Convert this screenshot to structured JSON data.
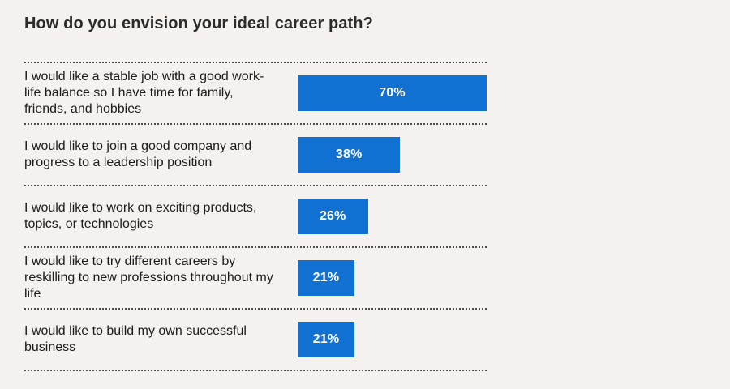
{
  "title": "How do you envision your ideal career path?",
  "colors": {
    "background": "#f4f1ee",
    "bar": "#1171d2",
    "bar_label": "#ffffff",
    "label_text": "#1c1c1c",
    "title_text": "#2b2b2b",
    "separator": "#4a4a4a"
  },
  "chart_data": {
    "type": "bar",
    "orientation": "horizontal",
    "title": "How do you envision your ideal career path?",
    "categories": [
      "I would like a stable job with a good work-life balance so I have time for family, friends, and hobbies",
      "I would like to join a good company and progress to a leadership position",
      "I would like to work on exciting products, topics, or technologies",
      "I would like to try different careers by reskilling to new professions throughout my life",
      "I would like to build my own successful business"
    ],
    "values": [
      70,
      38,
      26,
      21,
      21
    ],
    "value_labels": [
      "70%",
      "38%",
      "26%",
      "21%",
      "21%"
    ],
    "unit": "%",
    "xlim": [
      0,
      70
    ],
    "grid": false,
    "legend": null,
    "bar_value_label_position": "inside-center"
  }
}
